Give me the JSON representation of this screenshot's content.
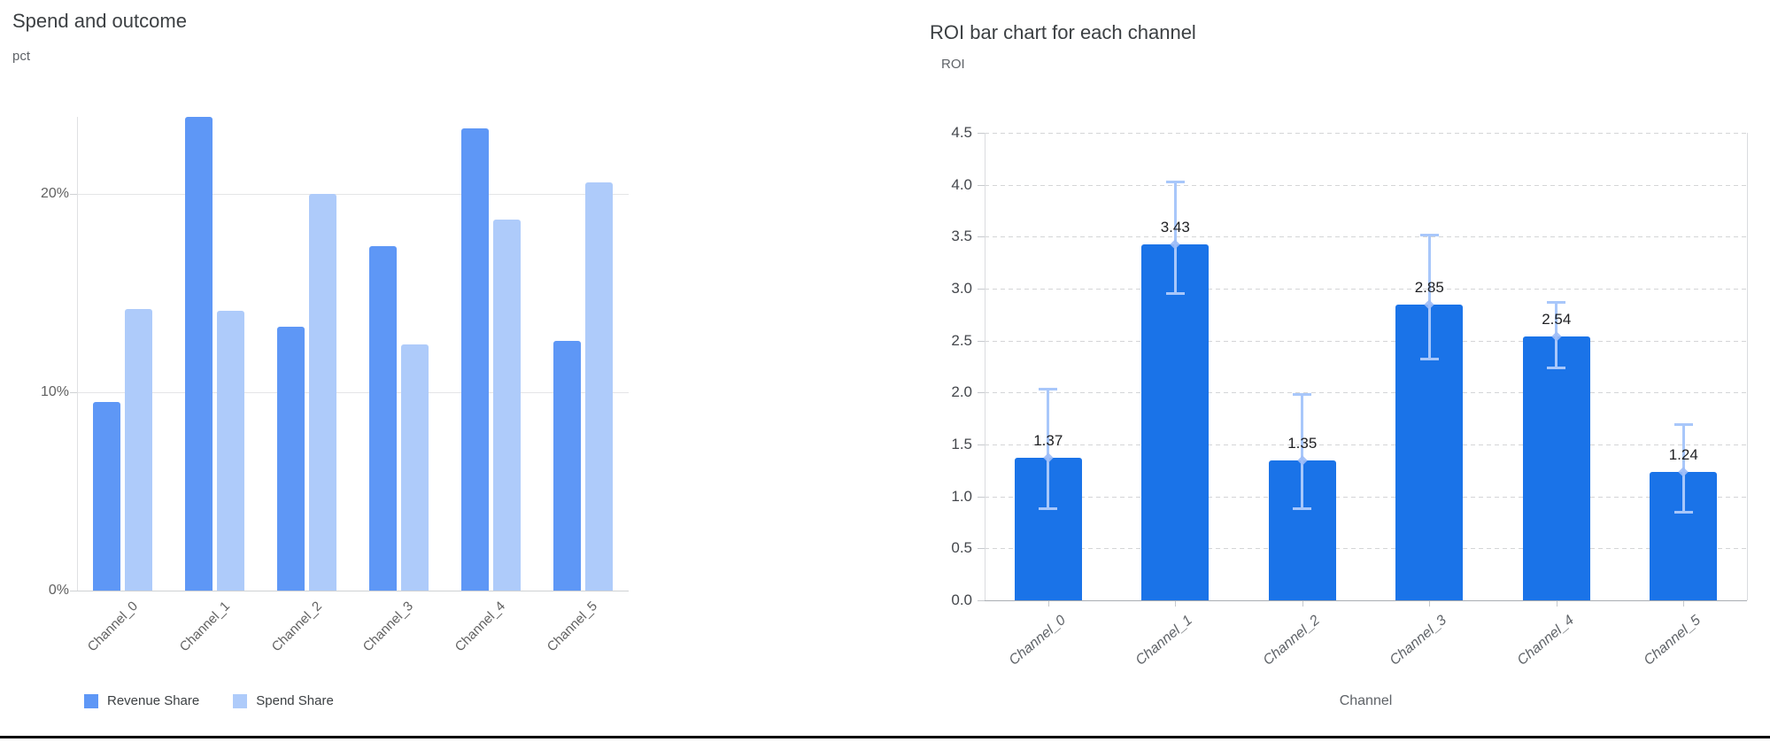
{
  "page": {
    "background": "#ffffff",
    "bottom_rule_color": "#000000"
  },
  "chart_data": [
    {
      "id": "spend_outcome",
      "type": "bar",
      "title": "Spend and outcome",
      "ylabel": "pct",
      "xlabel": "",
      "categories": [
        "Channel_0",
        "Channel_1",
        "Channel_2",
        "Channel_3",
        "Channel_4",
        "Channel_5"
      ],
      "series": [
        {
          "name": "Revenue Share",
          "color": "#5e97f6",
          "values": [
            9.5,
            23.9,
            13.3,
            17.4,
            23.3,
            12.6
          ]
        },
        {
          "name": "Spend Share",
          "color": "#aecbfa",
          "values": [
            14.2,
            14.1,
            20.0,
            12.4,
            18.7,
            20.6
          ]
        }
      ],
      "yticks": [
        {
          "value": 0,
          "label": "0%"
        },
        {
          "value": 10,
          "label": "10%"
        },
        {
          "value": 20,
          "label": "20%"
        }
      ],
      "ylim": [
        0,
        23.9
      ],
      "grid": "solid",
      "legend_position": "bottom"
    },
    {
      "id": "roi_by_channel",
      "type": "bar",
      "title": "ROI bar chart for each channel",
      "ylabel": "ROI",
      "xlabel": "Channel",
      "categories": [
        "Channel_0",
        "Channel_1",
        "Channel_2",
        "Channel_3",
        "Channel_4",
        "Channel_5"
      ],
      "series": [
        {
          "name": "ROI",
          "color": "#1a73e8",
          "values": [
            1.37,
            3.43,
            1.35,
            2.85,
            2.54,
            1.24
          ],
          "bar_labels": [
            "1.37",
            "3.43",
            "1.35",
            "2.85",
            "2.54",
            "1.24"
          ],
          "error_low": [
            0.88,
            2.95,
            0.88,
            2.32,
            2.23,
            0.84
          ],
          "error_high": [
            2.04,
            4.03,
            1.99,
            3.52,
            2.87,
            1.7
          ],
          "error_color": "#a8c7fa",
          "error_marker_color": "#9dbcf7"
        }
      ],
      "yticks": [
        {
          "value": 0.0,
          "label": "0.0"
        },
        {
          "value": 0.5,
          "label": "0.5"
        },
        {
          "value": 1.0,
          "label": "1.0"
        },
        {
          "value": 1.5,
          "label": "1.5"
        },
        {
          "value": 2.0,
          "label": "2.0"
        },
        {
          "value": 2.5,
          "label": "2.5"
        },
        {
          "value": 3.0,
          "label": "3.0"
        },
        {
          "value": 3.5,
          "label": "3.5"
        },
        {
          "value": 4.0,
          "label": "4.0"
        },
        {
          "value": 4.5,
          "label": "4.5"
        }
      ],
      "ylim": [
        0,
        4.5
      ],
      "grid": "dashed",
      "legend_position": "none"
    }
  ]
}
